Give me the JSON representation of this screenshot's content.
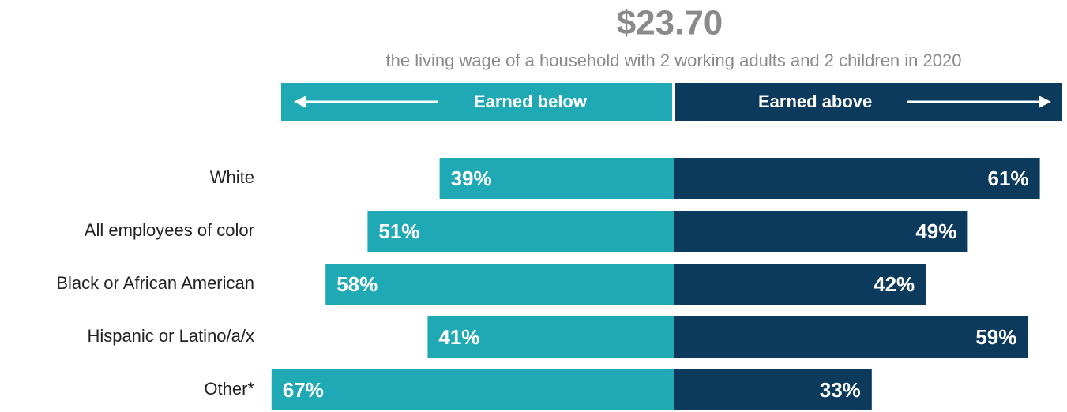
{
  "chart_data": {
    "type": "diverging-bar",
    "title": "$23.70",
    "subtitle": "the living wage of a household with 2 working adults and 2 children in 2020",
    "categories": [
      "White",
      "All employees of color",
      "Black or African American",
      "Hispanic or Latino/a/x",
      "Other*"
    ],
    "series": [
      {
        "name": "Earned below",
        "color": "#1fa9b5",
        "values": [
          39,
          51,
          58,
          41,
          67
        ],
        "value_labels": [
          "39%",
          "51%",
          "58%",
          "41%",
          "67%"
        ]
      },
      {
        "name": "Earned above",
        "color": "#0b3a5c",
        "values": [
          61,
          49,
          42,
          59,
          33
        ],
        "value_labels": [
          "61%",
          "49%",
          "42%",
          "59%",
          "33%"
        ]
      }
    ]
  }
}
